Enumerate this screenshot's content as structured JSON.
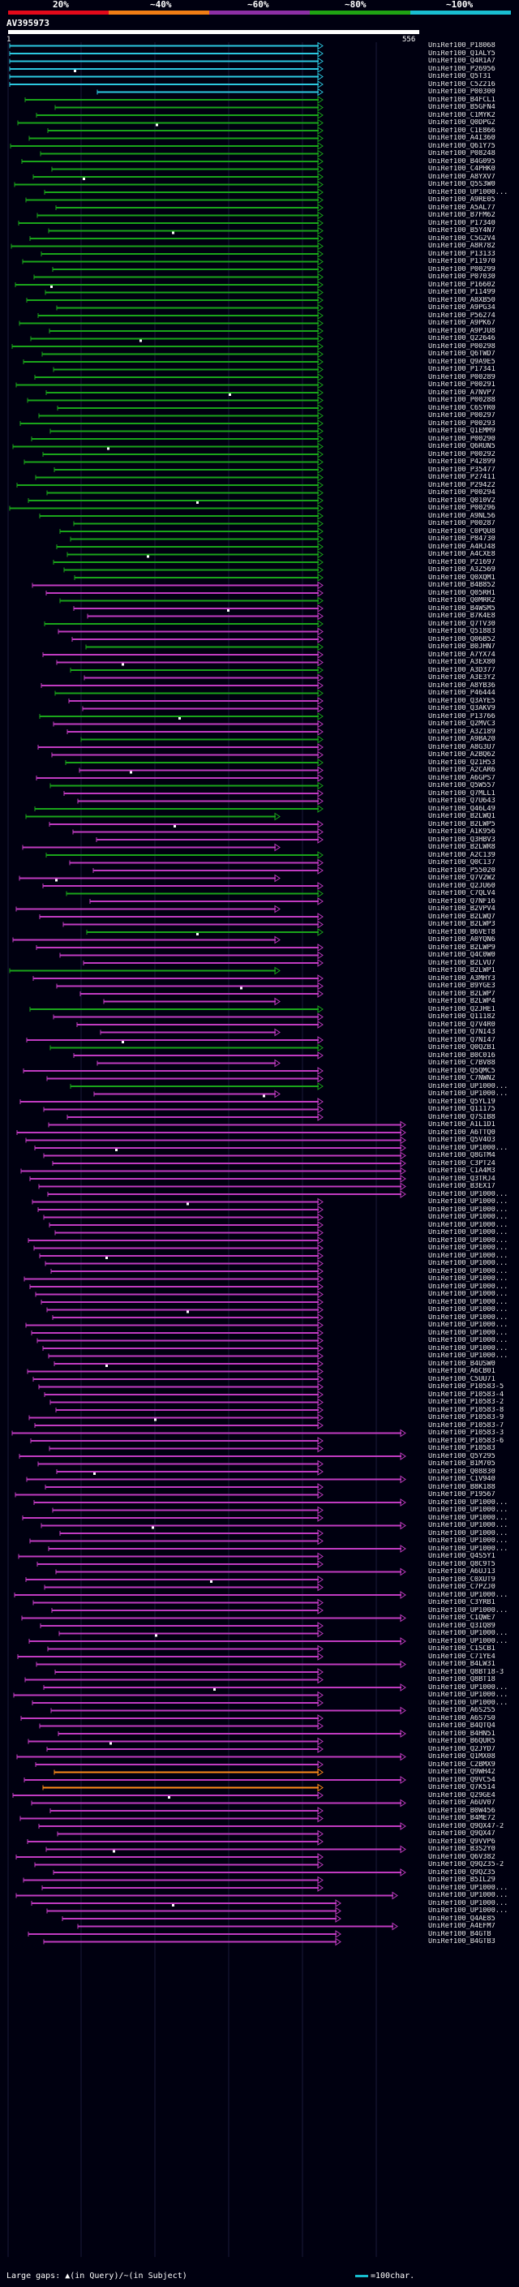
{
  "query": {
    "title": "AV395973",
    "start_label": "1",
    "end_label": "556"
  },
  "legend": {
    "items": [
      {
        "label": "20%",
        "color": "#e3091a"
      },
      {
        "label": "~40%",
        "color": "#f07d15"
      },
      {
        "label": "~60%",
        "color": "#8d2fa6"
      },
      {
        "label": "~80%",
        "color": "#1fa313"
      },
      {
        "label": "~100%",
        "color": "#19bed2"
      }
    ]
  },
  "colors": {
    "cyan": "#2cc8e0",
    "green": "#1aa51a",
    "magenta": "#c13bc1",
    "orange": "#ff8c1a",
    "background": "#000010"
  },
  "footer": {
    "text": "Large gaps: ▲(in Query)/~(in Subject)",
    "scale_text": "=100char."
  },
  "hits": [
    "UniRef100_P18068",
    "UniRef100_Q1ALY5",
    "UniRef100_Q4R1A7",
    "UniRef100_P26956",
    "UniRef100_Q5T31",
    "UniRef100_C5Z216",
    "UniRef100_P00300",
    "UniRef100_B4FCL1",
    "UniRef100_B5GFN4",
    "UniRef100_C1MYK2",
    "UniRef100_Q0DPG2",
    "UniRef100_C1E866",
    "UniRef100_A4I360",
    "UniRef100_Q61Y75",
    "UniRef100_P08248",
    "UniRef100_B4G095",
    "UniRef100_C4PHK0",
    "UniRef100_A8YXV7",
    "UniRef100_Q5S3W0",
    "UniRef100_UP1000...",
    "UniRef100_A9RE05",
    "UniRef100_A5AL77",
    "UniRef100_B7FM62",
    "UniRef100_P17340",
    "UniRef100_B5Y4N7",
    "UniRef100_C5G2V4",
    "UniRef100_A8R782",
    "UniRef100_P13133",
    "UniRef100_P11970",
    "UniRef100_P00299",
    "UniRef100_P07030",
    "UniRef100_P16602",
    "UniRef100_P11499",
    "UniRef100_A8XB50",
    "UniRef100_A9PG34",
    "UniRef100_P56274",
    "UniRef100_A9PK67",
    "UniRef100_A9PJU8",
    "UniRef100_Q22646",
    "UniRef100_P00298",
    "UniRef100_Q6TWD7",
    "UniRef100_Q9A9E5",
    "UniRef100_P17341",
    "UniRef100_P00289",
    "UniRef100_P00291",
    "UniRef100_A7NVP7",
    "UniRef100_P00288",
    "UniRef100_C6SYR0",
    "UniRef100_P00297",
    "UniRef100_P00293",
    "UniRef100_Q1EMM9",
    "UniRef100_P00290",
    "UniRef100_Q6RUN5",
    "UniRef100_P00292",
    "UniRef100_P42899",
    "UniRef100_P35477",
    "UniRef100_P27411",
    "UniRef100_P29422",
    "UniRef100_P00294",
    "UniRef100_Q010V2",
    "UniRef100_P00296",
    "UniRef100_A9NL56",
    "UniRef100_P00287",
    "UniRef100_C0PQU8",
    "UniRef100_P84730",
    "UniRef100_A4RJ48",
    "UniRef100_A4CXE8",
    "UniRef100_P21697",
    "UniRef100_A3Z569",
    "UniRef100_Q0XQM1",
    "UniRef100_B4B852",
    "UniRef100_Q05RH1",
    "UniRef100_Q0MRR2",
    "UniRef100_B4WSM5",
    "UniRef100_B7K4E8",
    "UniRef100_Q7TV30",
    "UniRef100_Q51883",
    "UniRef100_Q06B52",
    "UniRef100_B0JHN7",
    "UniRef100_A7YX74",
    "UniRef100_A3EX80",
    "UniRef100_A3D377",
    "UniRef100_A3E3Y2",
    "UniRef100_A8YB36",
    "UniRef100_P46444",
    "UniRef100_Q3AYE5",
    "UniRef100_Q3AKV9",
    "UniRef100_P13766",
    "UniRef100_Q2MVC3",
    "UniRef100_A3Z189",
    "UniRef100_A9BA20",
    "UniRef100_A8G3U7",
    "UniRef100_A2BQ62",
    "UniRef100_Q21H53",
    "UniRef100_A2CAR6",
    "UniRef100_A6GPS7",
    "UniRef100_Q5W557",
    "UniRef100_Q7MLL1",
    "UniRef100_Q7U643",
    "UniRef100_Q46L49",
    "UniRef100_B2LWQ1",
    "UniRef100_B2LWP5",
    "UniRef100_A1K956",
    "UniRef100_Q3HBV3",
    "UniRef100_B2LWR8",
    "UniRef100_A2C139",
    "UniRef100_Q0C137",
    "UniRef100_P55020",
    "UniRef100_Q7V2W2",
    "UniRef100_Q2JU60",
    "UniRef100_C7QLV4",
    "UniRef100_Q7NF16",
    "UniRef100_B2VPV4",
    "UniRef100_B2LWQ7",
    "UniRef100_B2LWP3",
    "UniRef100_B6VET8",
    "UniRef100_A0YQN6",
    "UniRef100_B2LWP9",
    "UniRef100_Q4C0W0",
    "UniRef100_B2LVU7",
    "UniRef100_B2LWP1",
    "UniRef100_A3MHY3",
    "UniRef100_B9YGE3",
    "UniRef100_B2LWP7",
    "UniRef100_B2LWP4",
    "UniRef100_Q2JHE1",
    "UniRef100_Q11182",
    "UniRef100_Q7V4R0",
    "UniRef100_Q7NI43",
    "UniRef100_Q7NI47",
    "UniRef100_Q0QZB1",
    "UniRef100_B0C016",
    "UniRef100_C7BV88",
    "UniRef100_Q5QMC5",
    "UniRef100_C7NWN2",
    "UniRef100_UP1000...",
    "UniRef100_UP1000...",
    "UniRef100_Q5YL19",
    "UniRef100_Q11175",
    "UniRef100_Q7SIB8",
    "UniRef100_A1L1D1",
    "UniRef100_A6TTQ0",
    "UniRef100_Q5V4O3",
    "UniRef100_UP1000...",
    "UniRef100_Q8GTM4",
    "UniRef100_C3PT24",
    "UniRef100_C1A4M3",
    "UniRef100_Q3TRJ4",
    "UniRef100_B3EX17",
    "UniRef100_UP1000...",
    "UniRef100_UP1000...",
    "UniRef100_UP1000...",
    "UniRef100_UP1000...",
    "UniRef100_UP1000...",
    "UniRef100_UP1000...",
    "UniRef100_UP1000...",
    "UniRef100_UP1000...",
    "UniRef100_UP1000...",
    "UniRef100_UP1000...",
    "UniRef100_UP1000...",
    "UniRef100_UP1000...",
    "UniRef100_UP1000...",
    "UniRef100_UP1000...",
    "UniRef100_UP1000...",
    "UniRef100_UP1000...",
    "UniRef100_UP1000...",
    "UniRef100_UP1000...",
    "UniRef100_UP1000...",
    "UniRef100_UP1000...",
    "UniRef100_UP1000...",
    "UniRef100_UP1000...",
    "UniRef100_B4USW0",
    "UniRef100_A6CB01",
    "UniRef100_C5UU71",
    "UniRef100_P10583-5",
    "UniRef100_P10583-4",
    "UniRef100_P10583-2",
    "UniRef100_P10583-8",
    "UniRef100_P10583-9",
    "UniRef100_P10583-7",
    "UniRef100_P10583-3",
    "UniRef100_P10583-6",
    "UniRef100_P10583",
    "UniRef100_Q5Y295",
    "UniRef100_B1M705",
    "UniRef100_Q08830",
    "UniRef100_C1V940",
    "UniRef100_B8K188",
    "UniRef100_P19567",
    "UniRef100_UP1000...",
    "UniRef100_UP1000...",
    "UniRef100_UP1000...",
    "UniRef100_UP1000...",
    "UniRef100_UP1000...",
    "UniRef100_UP1000...",
    "UniRef100_UP1000...",
    "UniRef100_Q4S5Y1",
    "UniRef100_Q8C9T5",
    "UniRef100_A6UJ13",
    "UniRef100_C0XUT9",
    "UniRef100_C7PZJ0",
    "UniRef100_UP1000...",
    "UniRef100_C3YRB1",
    "UniRef100_UP1000...",
    "UniRef100_C1QWE7",
    "UniRef100_Q3IQ89",
    "UniRef100_UP1000...",
    "UniRef100_UP1000...",
    "UniRef100_C1SCB1",
    "UniRef100_C71YE4",
    "UniRef100_B4LW31",
    "UniRef100_Q8BT18-3",
    "UniRef100_Q8BT18",
    "UniRef100_UP1000...",
    "UniRef100_UP1000...",
    "UniRef100_UP1000...",
    "UniRef100_A6S2S5",
    "UniRef100_A6S7S0",
    "UniRef100_B4QTQ4",
    "UniRef100_B4HN51",
    "UniRef100_B6QUR5",
    "UniRef100_Q2JYD7",
    "UniRef100_Q1MX08",
    "UniRef100_C2BMX9",
    "UniRef100_Q9WH42",
    "UniRef100_Q9VC54",
    "UniRef100_Q7K514",
    "UniRef100_Q29GE4",
    "UniRef100_A6UV07",
    "UniRef100_B0W456",
    "UniRef100_B4ME72",
    "UniRef100_Q9QX47-2",
    "UniRef100_Q9QX47",
    "UniRef100_Q9VVP6",
    "UniRef100_B3S2Y0",
    "UniRef100_Q6V382",
    "UniRef100_Q9QZ35-2",
    "UniRef100_Q9QZ35",
    "UniRef100_B5IL29",
    "UniRef100_UP1000...",
    "UniRef100_UP1000...",
    "UniRef100_UP1000...",
    "UniRef100_UP1000...",
    "UniRef100_Q4AE85",
    "UniRef100_A4EFM7",
    "UniRef100_B4GTB",
    "UniRef100_B4GTB3"
  ]
}
